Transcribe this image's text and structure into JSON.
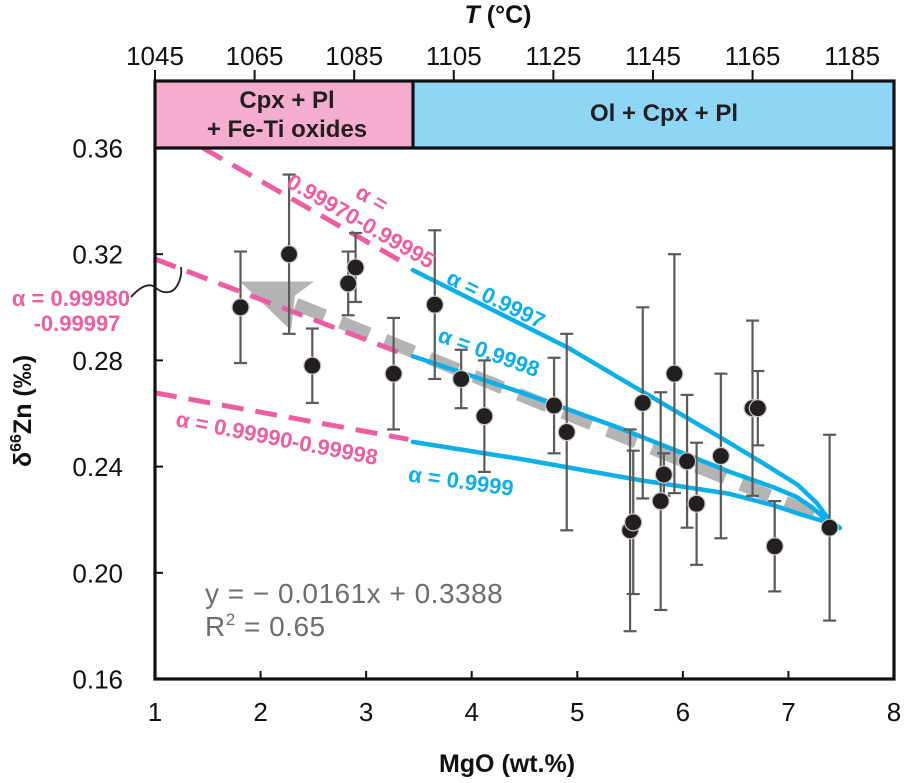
{
  "chart_data": {
    "type": "scatter",
    "title": "",
    "xlabel": "MgO (wt.%)",
    "ylabel": {
      "prefix": "δ",
      "superscript": "66",
      "suffix": "Zn (‰)"
    },
    "xlim": [
      1,
      8
    ],
    "ylim": [
      0.16,
      0.36
    ],
    "grid": false,
    "xticks": [
      {
        "value": 1,
        "label": "1"
      },
      {
        "value": 2,
        "label": "2"
      },
      {
        "value": 3,
        "label": "3"
      },
      {
        "value": 4,
        "label": "4"
      },
      {
        "value": 5,
        "label": "5"
      },
      {
        "value": 6,
        "label": "6"
      },
      {
        "value": 7,
        "label": "7"
      },
      {
        "value": 8,
        "label": "8"
      }
    ],
    "yticks": [
      {
        "value": 0.16,
        "label": "0.16"
      },
      {
        "value": 0.2,
        "label": "0.20"
      },
      {
        "value": 0.24,
        "label": "0.24"
      },
      {
        "value": 0.28,
        "label": "0.28"
      },
      {
        "value": 0.32,
        "label": "0.32"
      },
      {
        "value": 0.36,
        "label": "0.36"
      }
    ],
    "top_axis": {
      "label": {
        "italic": "T",
        "rest": " (°C)"
      },
      "lim": [
        1045,
        1193.4
      ],
      "ticks": [
        {
          "value": 1045,
          "label": "1045"
        },
        {
          "value": 1065,
          "label": "1065"
        },
        {
          "value": 1085,
          "label": "1085"
        },
        {
          "value": 1105,
          "label": "1105"
        },
        {
          "value": 1125,
          "label": "1125"
        },
        {
          "value": 1145,
          "label": "1145"
        },
        {
          "value": 1165,
          "label": "1165"
        },
        {
          "value": 1185,
          "label": "1185"
        }
      ]
    },
    "phase_fields": [
      {
        "id": "cpx-pl-fe-ti",
        "label_lines": [
          "Cpx + Pl",
          "+ Fe-Ti oxides"
        ],
        "mgo_range": [
          1,
          3.44
        ],
        "color": "#F5ADCF"
      },
      {
        "id": "ol-cpx-pl",
        "label_lines": [
          "Ol + Cpx + Pl"
        ],
        "mgo_range": [
          3.44,
          8
        ],
        "color": "#8FD6F6"
      }
    ],
    "series": [
      {
        "name": "samples",
        "marker": "circle",
        "color": "#231F20",
        "errorbar_color": "#5A5A5A",
        "points": [
          {
            "x": 1.81,
            "y": 0.3,
            "err": 0.021
          },
          {
            "x": 2.27,
            "y": 0.32,
            "err": 0.03
          },
          {
            "x": 2.49,
            "y": 0.278,
            "err": 0.014
          },
          {
            "x": 2.83,
            "y": 0.309,
            "err": 0.012
          },
          {
            "x": 2.9,
            "y": 0.315,
            "err": 0.013
          },
          {
            "x": 3.26,
            "y": 0.275,
            "err": 0.021
          },
          {
            "x": 3.65,
            "y": 0.301,
            "err": 0.028
          },
          {
            "x": 3.9,
            "y": 0.273,
            "err": 0.011
          },
          {
            "x": 4.12,
            "y": 0.259,
            "err": 0.021
          },
          {
            "x": 4.78,
            "y": 0.263,
            "err": 0.018
          },
          {
            "x": 4.9,
            "y": 0.253,
            "err": 0.037
          },
          {
            "x": 5.5,
            "y": 0.216,
            "err": 0.038
          },
          {
            "x": 5.53,
            "y": 0.219,
            "err": 0.027
          },
          {
            "x": 5.62,
            "y": 0.264,
            "err": 0.036
          },
          {
            "x": 5.79,
            "y": 0.227,
            "err": 0.041
          },
          {
            "x": 5.82,
            "y": 0.237,
            "err": 0.008
          },
          {
            "x": 5.92,
            "y": 0.275,
            "err": 0.045
          },
          {
            "x": 6.04,
            "y": 0.242,
            "err": 0.025
          },
          {
            "x": 6.13,
            "y": 0.226,
            "err": 0.023
          },
          {
            "x": 6.36,
            "y": 0.244,
            "err": 0.031
          },
          {
            "x": 6.66,
            "y": 0.262,
            "err": 0.033
          },
          {
            "x": 6.71,
            "y": 0.262,
            "err": 0.014
          },
          {
            "x": 6.87,
            "y": 0.21,
            "err": 0.017
          },
          {
            "x": 7.39,
            "y": 0.217,
            "err": 0.035
          }
        ]
      }
    ],
    "regression": {
      "slope": -0.0161,
      "intercept": 0.3388,
      "r2": 0.65,
      "equation": "y = − 0.0161x + 0.3388",
      "r2_label": {
        "prefix": "R",
        "superscript": "2",
        "suffix": " = 0.65"
      },
      "arrow": {
        "tail_x": 7.25,
        "head_x": 1.805,
        "shaft_end_x": 2.335
      },
      "color": "#B4B4B4"
    },
    "models": [
      {
        "id": "high",
        "early_stage": {
          "label_lines": [
            "α =",
            "0.99970-0.99995"
          ],
          "style": "dashed",
          "color": "#EC5DA1",
          "points": [
            [
              1.455,
              0.36
            ],
            [
              3.4,
              0.3158
            ]
          ]
        },
        "late_stage": {
          "label": "α = 0.9997",
          "style": "solid",
          "color": "#0DAFE9",
          "points": [
            [
              3.443,
              0.314
            ],
            [
              4.902,
              0.285
            ],
            [
              5.64,
              0.2677
            ],
            [
              6.35,
              0.2511
            ],
            [
              6.758,
              0.2413
            ],
            [
              7.089,
              0.2331
            ],
            [
              7.269,
              0.2263
            ],
            [
              7.386,
              0.2199
            ],
            [
              7.487,
              0.2169
            ]
          ]
        }
      },
      {
        "id": "mid",
        "early_stage": {
          "label_lines": [
            "α = 0.99980",
            "-0.99997"
          ],
          "style": "dashed",
          "color": "#EC5DA1",
          "points": [
            [
              1.0,
              0.3182
            ],
            [
              3.4,
              0.2817
            ]
          ]
        },
        "late_stage": {
          "label": "α = 0.9998",
          "style": "solid",
          "color": "#0DAFE9",
          "points": [
            [
              3.443,
              0.2816
            ],
            [
              4.456,
              0.2681
            ],
            [
              5.403,
              0.2545
            ],
            [
              6.445,
              0.238
            ],
            [
              6.852,
              0.2323
            ],
            [
              7.08,
              0.2285
            ],
            [
              7.231,
              0.2244
            ],
            [
              7.39,
              0.2188
            ],
            [
              7.487,
              0.2169
            ]
          ]
        }
      },
      {
        "id": "low",
        "early_stage": {
          "label_lines": [
            "α = 0.99990-0.99998"
          ],
          "style": "dashed",
          "color": "#EC5DA1",
          "points": [
            [
              1.0,
              0.2678
            ],
            [
              3.4,
              0.2503
            ]
          ]
        },
        "late_stage": {
          "label": "α = 0.9999",
          "style": "solid",
          "color": "#0DAFE9",
          "points": [
            [
              3.443,
              0.2493
            ],
            [
              4.456,
              0.2429
            ],
            [
              5.593,
              0.2349
            ],
            [
              6.445,
              0.2297
            ],
            [
              6.852,
              0.2255
            ],
            [
              7.108,
              0.2221
            ],
            [
              7.364,
              0.2191
            ],
            [
              7.487,
              0.2169
            ]
          ]
        }
      }
    ]
  }
}
